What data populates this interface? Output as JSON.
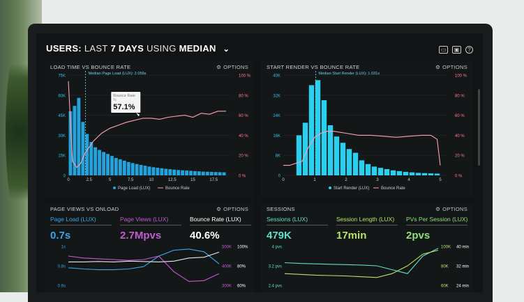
{
  "header": {
    "title_prefix": "USERS:",
    "title_mid1": "LAST",
    "title_bold": "7 DAYS",
    "title_mid2": "USING",
    "title_mode": "MEDIAN"
  },
  "header_icons": [
    "monitor-icon",
    "image-icon",
    "help-icon"
  ],
  "options_label": "OPTIONS",
  "panels": {
    "load": {
      "title": "LOAD TIME VS BOUNCE RATE",
      "median_label": "Median Page Load (LUX): 2.056s",
      "tooltip": {
        "label": "Bounce Rate",
        "unit": "%",
        "value": "57.1%"
      },
      "left_ticks": [
        "75K",
        "60K",
        "45K",
        "30K",
        "15K",
        "0"
      ],
      "right_ticks": [
        "100 %",
        "80 %",
        "60 %",
        "40 %",
        "20 %",
        "0 %"
      ],
      "x_ticks": [
        "0",
        "2.5",
        "5",
        "7.5",
        "10",
        "12.5",
        "15",
        "17.5"
      ],
      "legend": [
        "Page Load (LUX)",
        "Bounce Rate"
      ]
    },
    "render": {
      "title": "START RENDER VS BOUNCE RATE",
      "median_label": "Median Start Render (LUX): 1.031s",
      "left_ticks": [
        "40K",
        "32K",
        "24K",
        "16K",
        "8K",
        "0"
      ],
      "right_ticks": [
        "100 %",
        "80 %",
        "60 %",
        "40 %",
        "20 %",
        "0 %"
      ],
      "x_ticks": [
        "0",
        "1",
        "2",
        "3",
        "4",
        "5"
      ],
      "legend": [
        "Start Render (LUX)",
        "Bounce Rate"
      ]
    },
    "pageviews": {
      "title": "PAGE VIEWS VS ONLOAD",
      "metrics": [
        {
          "label": "Page Load (LUX)",
          "value": "0.7s",
          "color": "#3aa6e8"
        },
        {
          "label": "Page Views (LUX)",
          "value": "2.7Mpvs",
          "color": "#c15bd0"
        },
        {
          "label": "Bounce Rate (LUX)",
          "value": "40.6%",
          "color": "#ffffff"
        }
      ],
      "left_ticks": [
        "1s",
        "0.8s",
        "0.6s"
      ],
      "right_ticks_a": [
        "500K",
        "400K",
        "300K"
      ],
      "right_ticks_b": [
        "100%",
        "80%",
        "60%"
      ]
    },
    "sessions": {
      "title": "SESSIONS",
      "metrics": [
        {
          "label": "Sessions (LUX)",
          "value": "479K",
          "color": "#5fe0c8"
        },
        {
          "label": "Session Length (LUX)",
          "value": "17min",
          "color": "#b6e26a"
        },
        {
          "label": "PVs Per Session (LUX)",
          "value": "2pvs",
          "color": "#8fe07a"
        }
      ],
      "left_ticks": [
        "4 pvs",
        "3.2 pvs",
        "2.4 pvs"
      ],
      "right_ticks_a": [
        "100K",
        "80K",
        "60K"
      ],
      "right_ticks_b": [
        "40 min",
        "32 min",
        "24 min"
      ]
    }
  },
  "chart_data": [
    {
      "type": "bar",
      "title": "LOAD TIME VS BOUNCE RATE",
      "x": [
        0.25,
        0.75,
        1.25,
        1.75,
        2.25,
        2.75,
        3.25,
        3.75,
        4.25,
        4.75,
        5.25,
        5.75,
        6.25,
        6.75,
        7.25,
        7.75,
        8.25,
        8.75,
        9.25,
        9.75,
        10.25,
        10.75,
        11.25,
        11.75,
        12.25,
        12.75,
        13.25,
        13.75,
        14.25,
        14.75,
        15.25,
        15.75,
        16.25,
        16.75,
        17.25,
        17.75,
        18.25,
        18.75
      ],
      "values": [
        48000,
        52000,
        58000,
        40000,
        31000,
        25000,
        21000,
        19000,
        17500,
        16000,
        14500,
        13000,
        12000,
        11000,
        10000,
        9200,
        8500,
        7800,
        7200,
        6600,
        6100,
        5700,
        5300,
        4900,
        4600,
        4300,
        4000,
        3800,
        3600,
        3400,
        3200,
        3000,
        2800,
        2700,
        2600,
        2500,
        2400,
        2300
      ],
      "line_series": {
        "name": "Bounce Rate",
        "x": [
          0,
          0.5,
          1,
          1.5,
          2,
          3,
          4,
          5,
          6,
          7,
          8,
          9,
          10,
          11,
          12,
          13,
          14,
          15,
          16,
          17,
          18,
          19
        ],
        "values": [
          94,
          14,
          8,
          12,
          22,
          34,
          42,
          47,
          50,
          53,
          55,
          57,
          57,
          56,
          58,
          59,
          60,
          58,
          62,
          61,
          64,
          64
        ]
      },
      "bar_series_name": "Page Load (LUX)",
      "xlim": [
        0,
        19.5
      ],
      "ylim": [
        0,
        75000
      ],
      "y2lim": [
        0,
        100
      ],
      "median_x": 2.056
    },
    {
      "type": "bar",
      "title": "START RENDER VS BOUNCE RATE",
      "x": [
        0.1,
        0.3,
        0.5,
        0.7,
        0.9,
        1.1,
        1.3,
        1.5,
        1.7,
        1.9,
        2.1,
        2.3,
        2.5,
        2.7,
        2.9,
        3.1,
        3.3,
        3.5,
        3.7,
        3.9,
        4.1,
        4.3,
        4.5,
        4.7,
        4.9
      ],
      "values": [
        0,
        0,
        16000,
        21000,
        36000,
        38000,
        30000,
        20000,
        15500,
        13000,
        10500,
        9000,
        6000,
        4500,
        3500,
        3000,
        2500,
        2000,
        1700,
        1400,
        1200,
        1000,
        900,
        800,
        700
      ],
      "line_series": {
        "name": "Bounce Rate",
        "x": [
          0,
          0.2,
          0.4,
          0.6,
          0.8,
          1.0,
          1.2,
          1.4,
          1.6,
          1.8,
          2.0,
          2.4,
          2.8,
          3.2,
          3.6,
          4.0,
          4.4,
          4.7,
          4.9,
          5.0
        ],
        "values": [
          10,
          10,
          12,
          14,
          28,
          38,
          42,
          44,
          44,
          43,
          42,
          40,
          40,
          39,
          38,
          39,
          40,
          40,
          36,
          10
        ]
      },
      "bar_series_name": "Start Render (LUX)",
      "xlim": [
        0,
        5.2
      ],
      "ylim": [
        0,
        40000
      ],
      "y2lim": [
        0,
        100
      ],
      "median_x": 1.031
    },
    {
      "type": "line",
      "title": "PAGE VIEWS VS ONLOAD",
      "x": [
        0,
        1,
        2,
        3,
        4,
        5,
        6,
        7,
        8,
        9,
        10
      ],
      "series": [
        {
          "values": [
            0.45,
            0.42,
            0.4,
            0.4,
            0.42,
            0.48,
            0.75,
            0.9,
            0.93,
            0.86,
            0.55
          ],
          "color": "#3aa6e8"
        },
        {
          "values": [
            0.75,
            0.7,
            0.68,
            0.66,
            0.64,
            0.66,
            0.75,
            0.35,
            0.1,
            0.12,
            0.3
          ],
          "color": "#c15bd0"
        },
        {
          "values": [
            0.6,
            0.6,
            0.61,
            0.6,
            0.62,
            0.61,
            0.6,
            0.62,
            0.7,
            0.72,
            0.85
          ],
          "color": "#e8e8e8"
        }
      ]
    },
    {
      "type": "line",
      "title": "SESSIONS",
      "x": [
        0,
        1,
        2,
        3,
        4,
        5,
        6,
        7,
        8,
        9,
        10
      ],
      "series": [
        {
          "values": [
            0.58,
            0.56,
            0.55,
            0.54,
            0.53,
            0.52,
            0.5,
            0.4,
            0.3,
            0.75,
            0.95
          ],
          "color": "#5fe0c8"
        },
        {
          "values": [
            0.3,
            0.28,
            0.26,
            0.25,
            0.24,
            0.22,
            0.2,
            0.3,
            0.5,
            0.8,
            0.9
          ],
          "color": "#b6e26a"
        }
      ]
    }
  ]
}
